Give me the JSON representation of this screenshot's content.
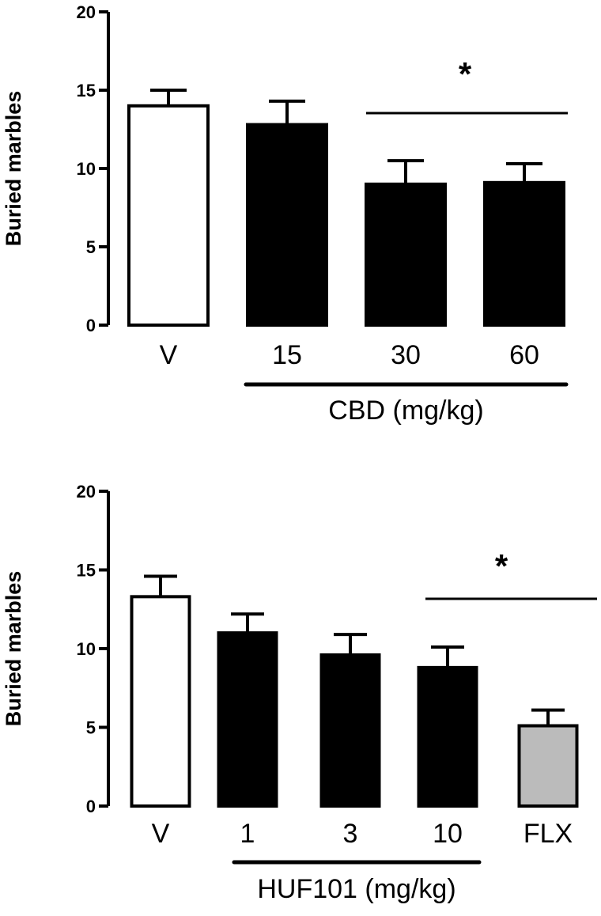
{
  "chart_data": [
    {
      "type": "bar",
      "ylabel": "Buried marbles",
      "xlabel": "",
      "ylim": [
        0,
        20
      ],
      "yticks": [
        0,
        5,
        10,
        15,
        20
      ],
      "tick_labels": [
        "0",
        "5",
        "10",
        "15",
        "20"
      ],
      "categories": [
        "V",
        "15",
        "30",
        "60"
      ],
      "values": [
        14.0,
        12.8,
        9.0,
        9.1
      ],
      "errors": [
        1.0,
        1.5,
        1.5,
        1.2
      ],
      "bar_colors": [
        "#ffffff",
        "#000000",
        "#000000",
        "#000000"
      ],
      "group_label": "CBD (mg/kg)",
      "group_span": [
        1,
        3
      ],
      "significance": {
        "label": "*",
        "span": [
          2,
          3
        ]
      }
    },
    {
      "type": "bar",
      "ylabel": "Buried marbles",
      "xlabel": "",
      "ylim": [
        0,
        20
      ],
      "yticks": [
        0,
        5,
        10,
        15,
        20
      ],
      "tick_labels": [
        "0",
        "5",
        "10",
        "15",
        "20"
      ],
      "categories": [
        "V",
        "1",
        "3",
        "10",
        "FLX"
      ],
      "values": [
        13.3,
        11.0,
        9.6,
        8.8,
        5.1
      ],
      "errors": [
        1.3,
        1.2,
        1.3,
        1.3,
        1.0
      ],
      "bar_colors": [
        "#ffffff",
        "#000000",
        "#000000",
        "#000000",
        "#bbbbbb"
      ],
      "group_label": "HUF101 (mg/kg)",
      "group_span": [
        1,
        3
      ],
      "significance": {
        "label": "*",
        "span": [
          3,
          4
        ]
      }
    }
  ]
}
